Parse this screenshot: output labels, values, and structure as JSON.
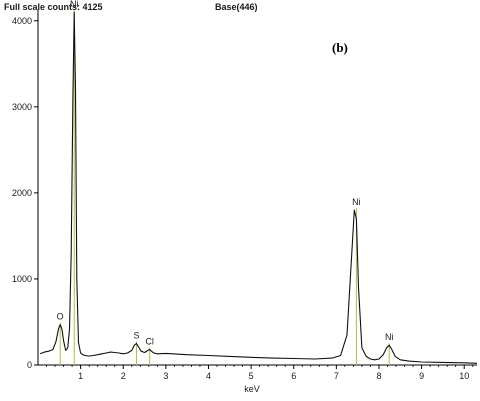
{
  "header": {
    "full_scale": "Full scale counts: 4125",
    "base": "Base(446)"
  },
  "chart_data": {
    "type": "line",
    "panel_label": "(b)",
    "xlabel": "keV",
    "ylabel": "",
    "xlim": [
      0,
      10.3
    ],
    "ylim": [
      0,
      4125
    ],
    "x_ticks": [
      1,
      2,
      3,
      4,
      5,
      6,
      7,
      8,
      9,
      10
    ],
    "y_ticks": [
      0,
      1000,
      2000,
      3000,
      4000
    ],
    "grid": false,
    "series": [
      {
        "color": "#111111",
        "x": [
          0.05,
          0.15,
          0.25,
          0.35,
          0.42,
          0.48,
          0.52,
          0.56,
          0.6,
          0.65,
          0.7,
          0.74,
          0.78,
          0.82,
          0.85,
          0.88,
          0.91,
          0.95,
          1.0,
          1.05,
          1.1,
          1.2,
          1.3,
          1.4,
          1.5,
          1.6,
          1.7,
          1.8,
          1.9,
          2.0,
          2.1,
          2.2,
          2.26,
          2.31,
          2.36,
          2.42,
          2.5,
          2.58,
          2.62,
          2.66,
          2.72,
          2.8,
          3.0,
          3.5,
          4.0,
          4.5,
          5.0,
          5.5,
          6.0,
          6.5,
          6.9,
          7.1,
          7.25,
          7.35,
          7.42,
          7.47,
          7.52,
          7.6,
          7.7,
          7.8,
          7.9,
          8.0,
          8.1,
          8.18,
          8.24,
          8.3,
          8.38,
          8.5,
          8.7,
          9.0,
          9.5,
          10.0,
          10.3
        ],
        "y": [
          130,
          150,
          160,
          180,
          270,
          420,
          470,
          420,
          280,
          170,
          200,
          420,
          1300,
          3100,
          4100,
          3200,
          1000,
          260,
          140,
          120,
          110,
          105,
          110,
          120,
          130,
          140,
          150,
          145,
          140,
          130,
          140,
          170,
          230,
          250,
          210,
          160,
          145,
          170,
          180,
          160,
          140,
          130,
          135,
          120,
          110,
          100,
          90,
          80,
          75,
          70,
          80,
          110,
          350,
          1200,
          1800,
          1700,
          900,
          200,
          100,
          70,
          60,
          70,
          120,
          200,
          230,
          180,
          100,
          60,
          45,
          35,
          30,
          25,
          20
        ]
      }
    ],
    "peak_labels": [
      {
        "text": "O",
        "x": 0.52,
        "y": 470
      },
      {
        "text": "Ni",
        "x": 0.85,
        "y": 4100
      },
      {
        "text": "S",
        "x": 2.31,
        "y": 250
      },
      {
        "text": "Cl",
        "x": 2.62,
        "y": 180
      },
      {
        "text": "Ni",
        "x": 7.47,
        "y": 1800
      },
      {
        "text": "Ni",
        "x": 8.24,
        "y": 230
      }
    ]
  }
}
